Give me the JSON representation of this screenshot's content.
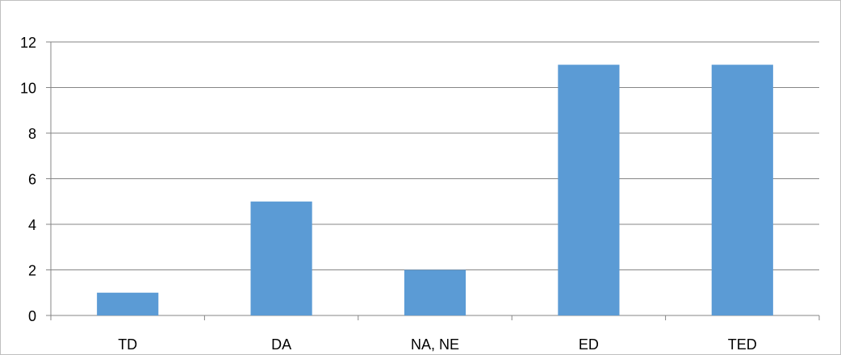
{
  "chart_data": {
    "type": "bar",
    "title": "",
    "xlabel": "",
    "ylabel": "",
    "categories": [
      "TD",
      "DA",
      "NA, NE",
      "ED",
      "TED"
    ],
    "series": [
      {
        "values": [
          1,
          5,
          2,
          11,
          11
        ],
        "color": "#5b9bd5"
      }
    ],
    "ylim": [
      0,
      12
    ],
    "yticks": [
      "0",
      "2",
      "4",
      "6",
      "8",
      "10",
      "12"
    ],
    "grid": true,
    "legend": "none"
  }
}
